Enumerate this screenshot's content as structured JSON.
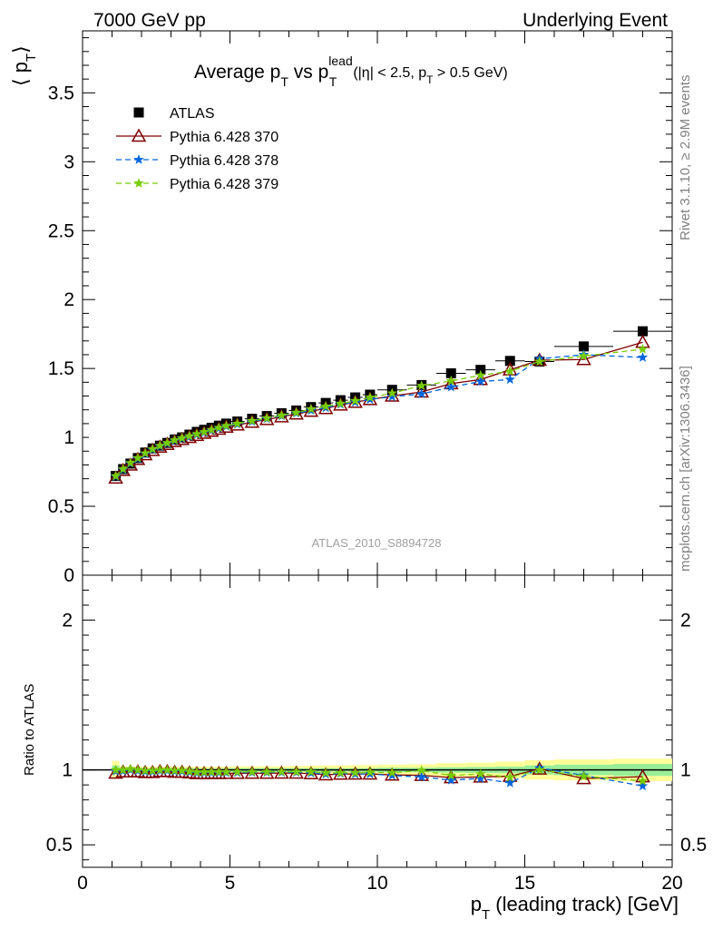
{
  "header": {
    "left": "7000 GeV pp",
    "right": "Underlying Event"
  },
  "side": {
    "rivet": "Rivet 3.1.10, ≥ 2.9M events",
    "mcplots": "mcplots.cern.ch [arXiv:1306.3436]"
  },
  "chart_data": {
    "type": "scatter",
    "title_parts": {
      "main": "Average p",
      "sub1": "T",
      "mid": " vs p",
      "sup": "lead",
      "sub2": "T",
      "cut_a": "(|η| < 2.5, p",
      "cut_sub": "T",
      "cut_b": " > 0.5 GeV)"
    },
    "ylabel_top": {
      "a": "⟨ p",
      "sub": "T",
      "b": "⟩"
    },
    "ylabel_bottom": "Ratio to ATLAS",
    "xlabel": {
      "a": "p",
      "sub": "T",
      "b": " (leading track) [GeV]"
    },
    "watermark": "ATLAS_2010_S8894728",
    "xlim": [
      0,
      20
    ],
    "ylim_top": [
      0,
      3.95
    ],
    "ylim_bottom": [
      0.35,
      2.3
    ],
    "x_ticks": [
      "0",
      "5",
      "10",
      "15",
      "20"
    ],
    "y_ticks_top": [
      "0",
      "0.5",
      "1",
      "1.5",
      "2",
      "2.5",
      "3",
      "3.5"
    ],
    "y_ticks_bottom": [
      "0.5",
      "1",
      "2"
    ],
    "x": [
      1.125,
      1.375,
      1.625,
      1.875,
      2.125,
      2.375,
      2.625,
      2.875,
      3.125,
      3.375,
      3.625,
      3.875,
      4.125,
      4.375,
      4.625,
      4.875,
      5.25,
      5.75,
      6.25,
      6.75,
      7.25,
      7.75,
      8.25,
      8.75,
      9.25,
      9.75,
      10.5,
      11.5,
      12.5,
      13.5,
      14.5,
      15.5,
      17.0,
      19.0
    ],
    "xerr": [
      0.125,
      0.125,
      0.125,
      0.125,
      0.125,
      0.125,
      0.125,
      0.125,
      0.125,
      0.125,
      0.125,
      0.125,
      0.125,
      0.125,
      0.125,
      0.125,
      0.25,
      0.25,
      0.25,
      0.25,
      0.25,
      0.25,
      0.25,
      0.25,
      0.25,
      0.25,
      0.5,
      0.5,
      0.5,
      0.5,
      0.5,
      0.5,
      1.0,
      1.0
    ],
    "band_rel_inner": [
      0.03,
      0.012,
      0.012,
      0.012,
      0.012,
      0.012,
      0.012,
      0.012,
      0.012,
      0.012,
      0.012,
      0.012,
      0.012,
      0.012,
      0.012,
      0.012,
      0.012,
      0.012,
      0.012,
      0.012,
      0.012,
      0.012,
      0.012,
      0.012,
      0.012,
      0.012,
      0.015,
      0.015,
      0.018,
      0.02,
      0.022,
      0.03,
      0.035,
      0.04
    ],
    "band_rel_outer": [
      0.06,
      0.025,
      0.022,
      0.022,
      0.022,
      0.022,
      0.022,
      0.022,
      0.022,
      0.022,
      0.022,
      0.022,
      0.022,
      0.022,
      0.022,
      0.022,
      0.024,
      0.024,
      0.025,
      0.025,
      0.027,
      0.028,
      0.03,
      0.03,
      0.032,
      0.032,
      0.035,
      0.038,
      0.045,
      0.048,
      0.055,
      0.065,
      0.07,
      0.075
    ],
    "series": [
      {
        "name": "ATLAS",
        "color": "#000000",
        "marker": "square",
        "values": [
          0.72,
          0.77,
          0.81,
          0.85,
          0.89,
          0.92,
          0.94,
          0.96,
          0.985,
          1.0,
          1.02,
          1.04,
          1.055,
          1.07,
          1.085,
          1.1,
          1.115,
          1.135,
          1.155,
          1.175,
          1.195,
          1.22,
          1.25,
          1.27,
          1.29,
          1.31,
          1.345,
          1.38,
          1.465,
          1.49,
          1.555,
          1.55,
          1.66,
          1.77
        ]
      },
      {
        "name": "Pythia 6.428 370",
        "color": "#7f0000",
        "marker": "open-triangle",
        "dash": "",
        "values": [
          0.705,
          0.76,
          0.8,
          0.84,
          0.875,
          0.905,
          0.93,
          0.95,
          0.97,
          0.985,
          1.0,
          1.015,
          1.03,
          1.045,
          1.06,
          1.075,
          1.09,
          1.11,
          1.13,
          1.15,
          1.17,
          1.19,
          1.21,
          1.235,
          1.255,
          1.275,
          1.3,
          1.33,
          1.39,
          1.42,
          1.49,
          1.56,
          1.565,
          1.69
        ]
      },
      {
        "name": "Pythia 6.428 378",
        "color": "#0066dd",
        "marker": "star",
        "dash": "6,4",
        "values": [
          0.715,
          0.765,
          0.81,
          0.845,
          0.88,
          0.91,
          0.935,
          0.955,
          0.975,
          0.99,
          1.005,
          1.02,
          1.035,
          1.05,
          1.065,
          1.08,
          1.095,
          1.115,
          1.135,
          1.155,
          1.175,
          1.195,
          1.215,
          1.24,
          1.255,
          1.275,
          1.295,
          1.315,
          1.365,
          1.405,
          1.42,
          1.57,
          1.6,
          1.58
        ]
      },
      {
        "name": "Pythia 6.428 379",
        "color": "#77cc00",
        "marker": "star",
        "dash": "6,4",
        "values": [
          0.72,
          0.77,
          0.815,
          0.85,
          0.885,
          0.915,
          0.94,
          0.96,
          0.98,
          0.995,
          1.01,
          1.025,
          1.04,
          1.055,
          1.07,
          1.085,
          1.1,
          1.12,
          1.14,
          1.16,
          1.18,
          1.205,
          1.225,
          1.245,
          1.265,
          1.29,
          1.32,
          1.375,
          1.41,
          1.45,
          1.48,
          1.55,
          1.59,
          1.64
        ]
      }
    ]
  }
}
